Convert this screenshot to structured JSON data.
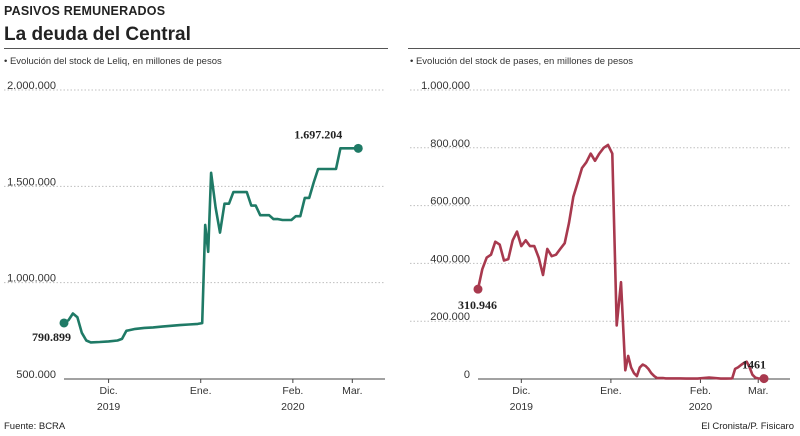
{
  "header": {
    "kicker": "PASIVOS REMUNERADOS",
    "title": "La deuda del Central"
  },
  "footer": {
    "source": "Fuente: BCRA",
    "credit": "El Cronista/P. Fisicaro"
  },
  "colors": {
    "leliq": "#1f7a66",
    "pases": "#a8394e",
    "grid": "#bfbfbf",
    "axis": "#444444"
  },
  "chart_data": [
    {
      "type": "line",
      "title": "• Evolución del stock de Leliq, en millones de pesos",
      "ylim": [
        500000,
        2000000
      ],
      "yticks": [
        500000,
        1000000,
        1500000,
        2000000
      ],
      "ytick_labels": [
        "500.000",
        "1.000.000",
        "1.500.000",
        "2.000.000"
      ],
      "xlim": [
        0,
        108
      ],
      "xticks": [
        {
          "x": 15,
          "label": "Dic."
        },
        {
          "x": 46,
          "label": "Ene."
        },
        {
          "x": 77,
          "label": "Feb."
        },
        {
          "x": 97,
          "label": "Mar."
        }
      ],
      "year_labels": [
        {
          "x": 15,
          "label": "2019"
        },
        {
          "x": 77,
          "label": "2020"
        }
      ],
      "start_label": "790.899",
      "end_label": "1.697.204",
      "series": [
        {
          "x": [
            0,
            1.5,
            3,
            4.5,
            6,
            7.5,
            9,
            12,
            15,
            18,
            19.5,
            21,
            24,
            27,
            30,
            33,
            36,
            39,
            42,
            45,
            46.5,
            47.5,
            48.5,
            49.5,
            51,
            52.5,
            54,
            55.5,
            57,
            58.5,
            60,
            61.5,
            63,
            64.5,
            66,
            67.5,
            69,
            70.5,
            72,
            73.5,
            75,
            76.5,
            78,
            79.5,
            81,
            82.5,
            84,
            85.5,
            87,
            88.5,
            90,
            91.5,
            93,
            94.5,
            96,
            97.5,
            99
          ],
          "y": [
            790899,
            805000,
            840000,
            820000,
            740000,
            700000,
            690000,
            692000,
            695000,
            700000,
            708000,
            750000,
            760000,
            765000,
            768000,
            772000,
            776000,
            780000,
            783000,
            786000,
            790000,
            1300000,
            1160000,
            1570000,
            1390000,
            1260000,
            1410000,
            1410000,
            1470000,
            1470000,
            1470000,
            1470000,
            1400000,
            1400000,
            1350000,
            1350000,
            1350000,
            1330000,
            1330000,
            1325000,
            1325000,
            1325000,
            1345000,
            1345000,
            1440000,
            1440000,
            1520000,
            1590000,
            1590000,
            1590000,
            1590000,
            1590000,
            1697204,
            1697204,
            1697204,
            1697204,
            1697204
          ]
        }
      ]
    },
    {
      "type": "line",
      "title": "• Evolución del stock de pases, en millones de pesos",
      "ylim": [
        0,
        1000000
      ],
      "yticks": [
        0,
        200000,
        400000,
        600000,
        800000,
        1000000
      ],
      "ytick_labels": [
        "0",
        "200.000",
        "400.000",
        "600.000",
        "800.000",
        "1.000.000"
      ],
      "xlim": [
        0,
        108
      ],
      "xticks": [
        {
          "x": 15,
          "label": "Dic."
        },
        {
          "x": 46,
          "label": "Ene."
        },
        {
          "x": 77,
          "label": "Feb."
        },
        {
          "x": 97,
          "label": "Mar."
        }
      ],
      "year_labels": [
        {
          "x": 15,
          "label": "2019"
        },
        {
          "x": 77,
          "label": "2020"
        }
      ],
      "start_label": "310.946",
      "end_label": "1461",
      "series": [
        {
          "x": [
            0,
            1.5,
            3,
            4.5,
            6,
            7.5,
            9,
            10.5,
            12,
            13.5,
            15,
            16.5,
            18,
            19.5,
            21,
            22.5,
            24,
            25.5,
            27,
            28.5,
            30,
            31.5,
            33,
            34.5,
            36,
            37.5,
            39,
            40.5,
            42,
            43.5,
            45,
            46.5,
            48,
            49.5,
            51,
            52,
            53,
            54,
            55,
            56,
            57,
            58,
            59,
            60,
            61,
            62,
            63,
            64,
            65,
            66,
            67,
            68,
            70,
            72,
            74,
            76,
            78,
            80,
            82,
            84,
            86,
            88,
            89,
            90,
            91,
            92,
            93,
            94,
            95,
            96,
            97,
            98,
            99
          ],
          "y": [
            310946,
            380000,
            420000,
            430000,
            475000,
            465000,
            410000,
            415000,
            480000,
            510000,
            460000,
            480000,
            460000,
            460000,
            420000,
            360000,
            450000,
            425000,
            430000,
            450000,
            470000,
            540000,
            630000,
            680000,
            730000,
            750000,
            780000,
            755000,
            780000,
            800000,
            810000,
            780000,
            185000,
            335000,
            30000,
            80000,
            40000,
            20000,
            10000,
            40000,
            50000,
            45000,
            35000,
            20000,
            10000,
            3000,
            3000,
            3000,
            2000,
            2000,
            2000,
            2000,
            2000,
            1500,
            1500,
            1500,
            3000,
            5000,
            3000,
            1500,
            1500,
            2000,
            35000,
            40000,
            48000,
            55000,
            60000,
            40000,
            15000,
            5000,
            2000,
            1500,
            1461
          ]
        }
      ]
    }
  ]
}
